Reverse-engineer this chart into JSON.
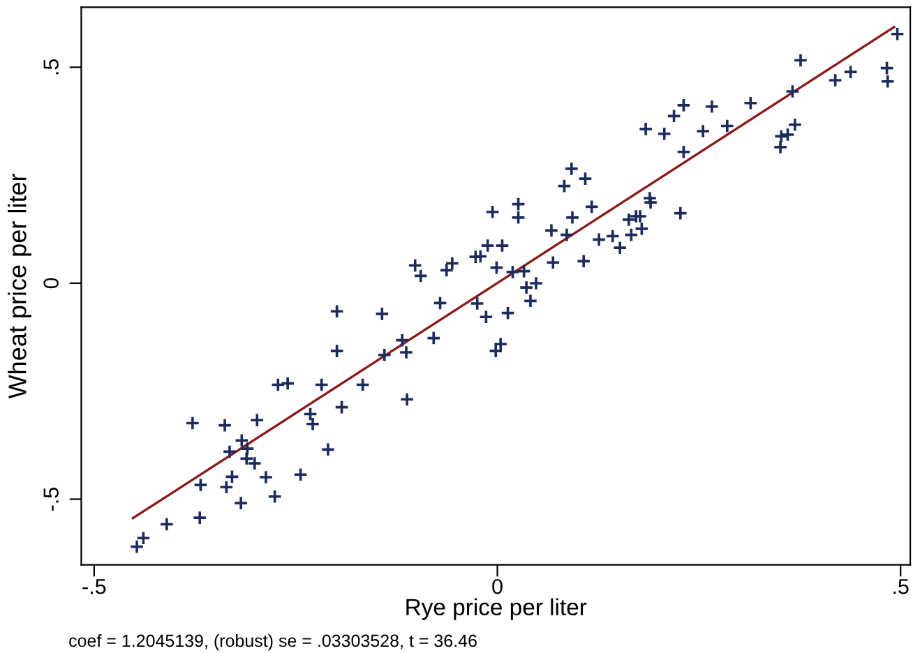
{
  "chart_data": {
    "type": "scatter",
    "xlabel": "Rye price per liter",
    "ylabel": "Wheat price per liter",
    "xlim": [
      -0.516,
      0.512
    ],
    "ylim": [
      -0.652,
      0.639
    ],
    "xticks": [
      {
        "value": -0.5,
        "label": "-.5"
      },
      {
        "value": 0,
        "label": "0"
      },
      {
        "value": 0.5,
        "label": ".5"
      }
    ],
    "yticks": [
      {
        "value": -0.5,
        "label": "-.5"
      },
      {
        "value": 0,
        "label": "0"
      },
      {
        "value": 0.5,
        "label": ".5"
      }
    ],
    "grid": false,
    "legend": false,
    "annotations": [
      "coef = 1.2045139, (robust) se = .03303528, t = 36.46"
    ],
    "series": [
      {
        "marker": "cross",
        "color": "#1a2b5c",
        "x": [
          -0.447,
          -0.439,
          -0.41,
          -0.369,
          -0.378,
          -0.368,
          -0.338,
          -0.336,
          -0.329,
          -0.318,
          -0.317,
          -0.332,
          -0.31,
          -0.311,
          -0.301,
          -0.298,
          -0.287,
          -0.276,
          -0.272,
          -0.26,
          -0.244,
          -0.232,
          -0.229,
          -0.218,
          -0.21,
          -0.199,
          -0.199,
          -0.193,
          -0.167,
          -0.143,
          -0.14,
          -0.118,
          -0.113,
          -0.112,
          -0.102,
          -0.095,
          -0.079,
          -0.071,
          -0.063,
          -0.056,
          -0.027,
          -0.021,
          -0.025,
          -0.014,
          -0.012,
          -0.006,
          -0.002,
          0.004,
          -0.001,
          0.006,
          0.013,
          0.019,
          0.026,
          0.026,
          0.033,
          0.036,
          0.041,
          0.048,
          0.067,
          0.069,
          0.083,
          0.086,
          0.092,
          0.093,
          0.107,
          0.109,
          0.117,
          0.126,
          0.143,
          0.152,
          0.166,
          0.163,
          0.172,
          0.177,
          0.179,
          0.184,
          0.189,
          0.19,
          0.207,
          0.219,
          0.227,
          0.231,
          0.231,
          0.255,
          0.266,
          0.285,
          0.314,
          0.351,
          0.352,
          0.36,
          0.369,
          0.366,
          0.376,
          0.419,
          0.438,
          0.483,
          0.484,
          0.496
        ],
        "values": [
          -0.61,
          -0.59,
          -0.558,
          -0.543,
          -0.324,
          -0.467,
          -0.329,
          -0.472,
          -0.448,
          -0.509,
          -0.364,
          -0.39,
          -0.383,
          -0.406,
          -0.417,
          -0.317,
          -0.449,
          -0.494,
          -0.235,
          -0.232,
          -0.443,
          -0.303,
          -0.326,
          -0.235,
          -0.385,
          -0.065,
          -0.157,
          -0.287,
          -0.235,
          -0.071,
          -0.166,
          -0.132,
          -0.16,
          -0.269,
          0.041,
          0.017,
          -0.127,
          -0.046,
          0.03,
          0.046,
          0.061,
          0.062,
          -0.047,
          -0.078,
          0.087,
          0.165,
          -0.157,
          -0.141,
          0.036,
          0.087,
          -0.069,
          0.026,
          0.183,
          0.152,
          0.028,
          -0.01,
          -0.041,
          0.0,
          0.122,
          0.048,
          0.225,
          0.112,
          0.265,
          0.152,
          0.051,
          0.242,
          0.177,
          0.101,
          0.109,
          0.082,
          0.112,
          0.147,
          0.155,
          0.155,
          0.126,
          0.357,
          0.197,
          0.187,
          0.346,
          0.387,
          0.162,
          0.412,
          0.304,
          0.352,
          0.409,
          0.364,
          0.417,
          0.315,
          0.34,
          0.344,
          0.367,
          0.444,
          0.516,
          0.47,
          0.489,
          0.498,
          0.467,
          0.577
        ]
      },
      {
        "type": "line",
        "color": "#8b1a1a",
        "line_style": "solid",
        "marker": "none",
        "x": [
          -0.452,
          0.492
        ],
        "values": [
          -0.544,
          0.593
        ]
      }
    ]
  }
}
